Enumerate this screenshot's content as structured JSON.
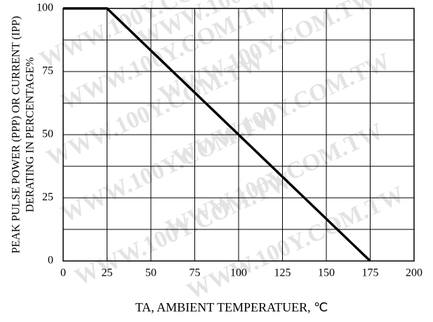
{
  "chart_data": {
    "type": "line",
    "x_label": "TA, AMBIENT TEMPERATUER, ℃",
    "y_label": [
      "PEAK PULSE POWER (PPP) OR CURRENT (IPP)",
      "DERATING IN PERCENTAGE%"
    ],
    "watermark": "WWW.100Y.COM.TW",
    "series": [
      {
        "name": "Derating",
        "color": "#000000",
        "x": [
          0,
          25,
          175
        ],
        "values": [
          100,
          100,
          0
        ]
      }
    ],
    "xlim": [
      0,
      200
    ],
    "xticks": [
      0,
      25,
      50,
      75,
      100,
      125,
      150,
      175,
      200
    ],
    "ylim": [
      0,
      100
    ],
    "yticks": [
      0,
      25,
      50,
      75,
      100
    ],
    "y_minor_ticks": [
      12.5,
      37.5,
      62.5,
      87.5
    ],
    "grid": true
  }
}
